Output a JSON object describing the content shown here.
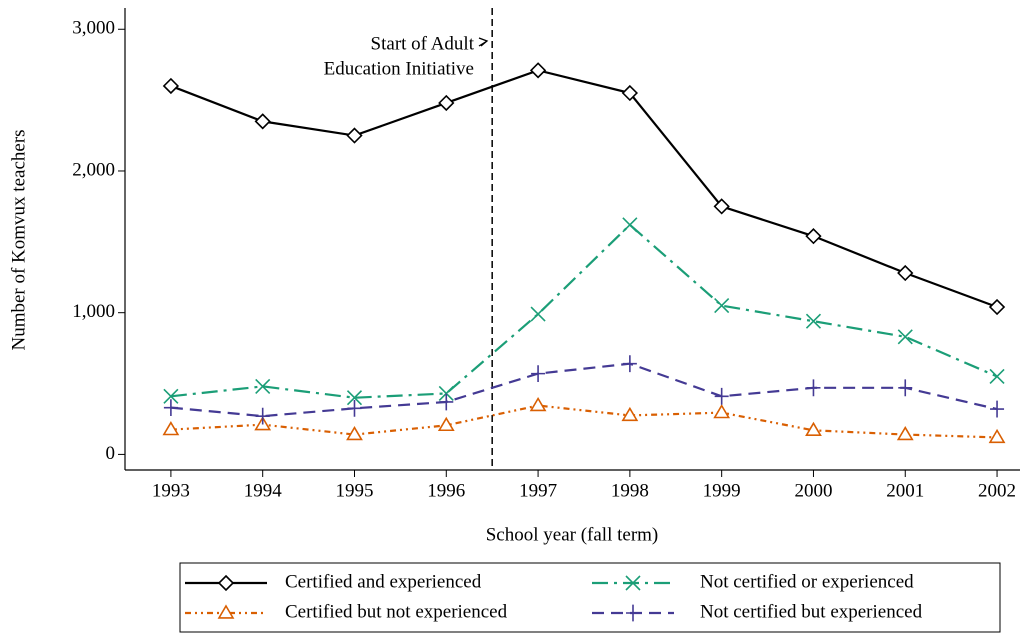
{
  "chart_data": {
    "type": "line",
    "x": [
      1993,
      1994,
      1995,
      1996,
      1997,
      1998,
      1999,
      2000,
      2001,
      2002
    ],
    "xlim": [
      1992.5,
      2002.25
    ],
    "xticks": [
      1993,
      1994,
      1995,
      1996,
      1997,
      1998,
      1999,
      2000,
      2001,
      2002
    ],
    "ylim": [
      -110,
      3150
    ],
    "yticks": [
      0,
      {
        "value": 1000,
        "label": "1,000"
      },
      {
        "value": 2000,
        "label": "2,000"
      },
      {
        "value": 3000,
        "label": "3,000"
      }
    ],
    "xlabel": "School year (fall term)",
    "ylabel": "Number of Komvux teachers",
    "grid": false,
    "vline": 1996.5,
    "annotation": [
      "Start of Adult",
      "Education Initiative"
    ],
    "legend": "bottom",
    "series": [
      {
        "name": "Certified and experienced",
        "color": "#000000",
        "marker": "diamond",
        "line_style": "solid",
        "values": [
          2600,
          2350,
          2250,
          2480,
          2710,
          2550,
          1750,
          1540,
          1280,
          1040
        ]
      },
      {
        "name": "Not certified or experienced",
        "color": "#1b9e77",
        "marker": "x",
        "line_style": "longdash-dot",
        "values": [
          410,
          480,
          400,
          430,
          990,
          1620,
          1050,
          940,
          830,
          550
        ]
      },
      {
        "name": "Certified but not experienced",
        "color": "#d95f02",
        "marker": "triangle",
        "line_style": "dash-dot-dot",
        "values": [
          175,
          210,
          140,
          205,
          345,
          275,
          295,
          170,
          140,
          120
        ]
      },
      {
        "name": "Not certified but experienced",
        "color": "#443a94",
        "marker": "plus",
        "line_style": "dash",
        "values": [
          330,
          270,
          325,
          370,
          570,
          640,
          410,
          470,
          470,
          320
        ]
      }
    ]
  }
}
